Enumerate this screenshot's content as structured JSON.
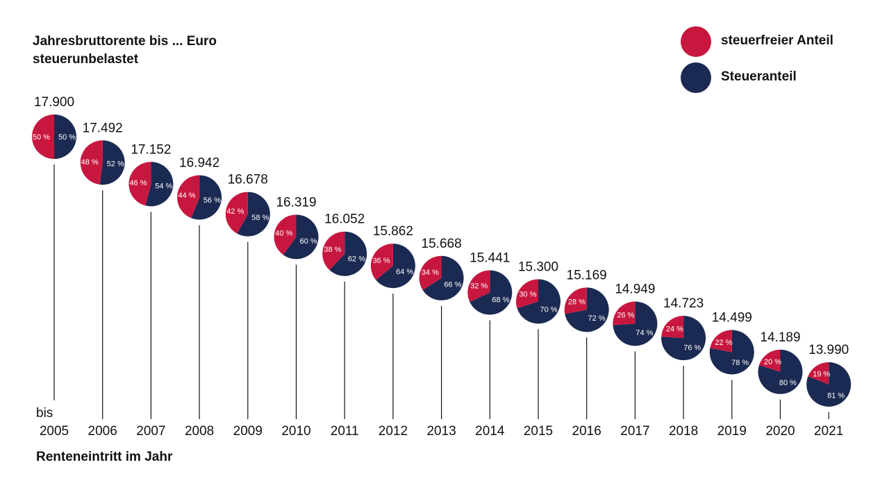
{
  "chart_data": {
    "type": "pie",
    "title_line1": "Jahresbruttorente bis ... Euro",
    "title_line2": "steuerunbelastet",
    "xlabel": "Renteneintritt im Jahr",
    "first_year_prefix": "bis",
    "legend": [
      {
        "name": "steuerfreier Anteil",
        "color": "#c8173f"
      },
      {
        "name": "Steueranteil",
        "color": "#1b2a52"
      }
    ],
    "categories": [
      "2005",
      "2006",
      "2007",
      "2008",
      "2009",
      "2010",
      "2011",
      "2012",
      "2013",
      "2014",
      "2015",
      "2016",
      "2017",
      "2018",
      "2019",
      "2020",
      "2021"
    ],
    "amounts": [
      "17.900",
      "17.492",
      "17.152",
      "16.942",
      "16.678",
      "16.319",
      "16.052",
      "15.862",
      "15.668",
      "15.441",
      "15.300",
      "15.169",
      "14.949",
      "14.723",
      "14.499",
      "14.189",
      "13.990"
    ],
    "amount_values": [
      17900,
      17492,
      17152,
      16942,
      16678,
      16319,
      16052,
      15862,
      15668,
      15441,
      15300,
      15169,
      14949,
      14723,
      14499,
      14189,
      13990
    ],
    "series": [
      {
        "name": "steuerfreier Anteil",
        "values": [
          50,
          48,
          46,
          44,
          42,
          40,
          38,
          36,
          34,
          32,
          30,
          28,
          26,
          24,
          22,
          20,
          19
        ]
      },
      {
        "name": "Steueranteil",
        "values": [
          50,
          52,
          54,
          56,
          58,
          60,
          62,
          64,
          66,
          68,
          70,
          72,
          74,
          76,
          78,
          80,
          81
        ]
      }
    ],
    "percent_suffix": " %"
  }
}
